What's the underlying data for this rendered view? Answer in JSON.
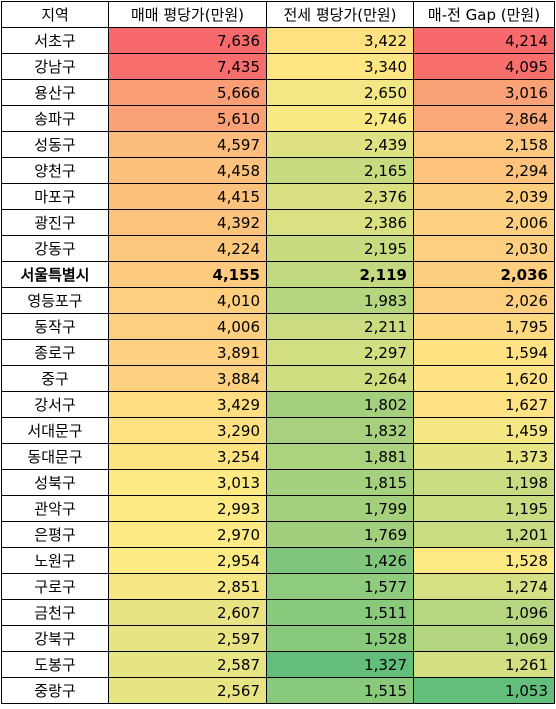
{
  "table": {
    "headers": [
      "지역",
      "매매 평당가(만원)",
      "전세 평당가(만원)",
      "매-전 Gap (만원)"
    ],
    "bold_row_index": 9,
    "rows": [
      {
        "region": "서초구",
        "sale": "7,636",
        "jeonse": "3,422",
        "gap": "4,214",
        "sale_color": "#f8696b",
        "jeonse_color": "#fee282",
        "gap_color": "#f8696b"
      },
      {
        "region": "강남구",
        "sale": "7,435",
        "jeonse": "3,340",
        "gap": "4,095",
        "sale_color": "#f86e6c",
        "jeonse_color": "#fee683",
        "gap_color": "#f86f6c"
      },
      {
        "region": "용산구",
        "sale": "5,666",
        "jeonse": "2,650",
        "gap": "3,016",
        "sale_color": "#fa9f75",
        "jeonse_color": "#f1e784",
        "gap_color": "#fba176"
      },
      {
        "region": "송파구",
        "sale": "5,610",
        "jeonse": "2,746",
        "gap": "2,864",
        "sale_color": "#faa176",
        "jeonse_color": "#f8e984",
        "gap_color": "#fba978"
      },
      {
        "region": "성동구",
        "sale": "4,597",
        "jeonse": "2,439",
        "gap": "2,158",
        "sale_color": "#fcbc7b",
        "jeonse_color": "#dfe283",
        "gap_color": "#fdc97e"
      },
      {
        "region": "양천구",
        "sale": "4,458",
        "jeonse": "2,165",
        "gap": "2,294",
        "sale_color": "#fcc17c",
        "jeonse_color": "#c6da80",
        "gap_color": "#fdc37d"
      },
      {
        "region": "마포구",
        "sale": "4,415",
        "jeonse": "2,376",
        "gap": "2,039",
        "sale_color": "#fcc27c",
        "jeonse_color": "#d9e082",
        "gap_color": "#fece7f"
      },
      {
        "region": "광진구",
        "sale": "4,392",
        "jeonse": "2,386",
        "gap": "2,006",
        "sale_color": "#fcc37d",
        "jeonse_color": "#dae182",
        "gap_color": "#fed080"
      },
      {
        "region": "강동구",
        "sale": "4,224",
        "jeonse": "2,195",
        "gap": "2,030",
        "sale_color": "#fcc87d",
        "jeonse_color": "#c9db81",
        "gap_color": "#fecf7f"
      },
      {
        "region": "서울특별시",
        "sale": "4,155",
        "jeonse": "2,119",
        "gap": "2,036",
        "sale_color": "#fdca7e",
        "jeonse_color": "#c2d980",
        "gap_color": "#fece7f"
      },
      {
        "region": "영등포구",
        "sale": "4,010",
        "jeonse": "1,983",
        "gap": "2,026",
        "sale_color": "#fdcf7f",
        "jeonse_color": "#b5d57f",
        "gap_color": "#fecf7f"
      },
      {
        "region": "동작구",
        "sale": "4,006",
        "jeonse": "2,211",
        "gap": "1,795",
        "sale_color": "#fdcf7f",
        "jeonse_color": "#cadb81",
        "gap_color": "#fed981"
      },
      {
        "region": "종로구",
        "sale": "3,891",
        "jeonse": "2,297",
        "gap": "1,594",
        "sale_color": "#fdd17f",
        "jeonse_color": "#d2de82",
        "gap_color": "#ffe383"
      },
      {
        "region": "중구",
        "sale": "3,884",
        "jeonse": "2,264",
        "gap": "1,620",
        "sale_color": "#fdd17f",
        "jeonse_color": "#cfdd81",
        "gap_color": "#fee283"
      },
      {
        "region": "강서구",
        "sale": "3,429",
        "jeonse": "1,802",
        "gap": "1,627",
        "sale_color": "#fede81",
        "jeonse_color": "#a4d07e",
        "gap_color": "#fee283"
      },
      {
        "region": "서대문구",
        "sale": "3,290",
        "jeonse": "1,832",
        "gap": "1,459",
        "sale_color": "#fee282",
        "jeonse_color": "#a7d17e",
        "gap_color": "#f5e884"
      },
      {
        "region": "동대문구",
        "sale": "3,254",
        "jeonse": "1,881",
        "gap": "1,373",
        "sale_color": "#fee382",
        "jeonse_color": "#abd27e",
        "gap_color": "#e7e483"
      },
      {
        "region": "성북구",
        "sale": "3,013",
        "jeonse": "1,815",
        "gap": "1,198",
        "sale_color": "#fee983",
        "jeonse_color": "#a5d07e",
        "gap_color": "#c9dc81"
      },
      {
        "region": "관악구",
        "sale": "2,993",
        "jeonse": "1,799",
        "gap": "1,195",
        "sale_color": "#feea83",
        "jeonse_color": "#a4d07e",
        "gap_color": "#c9dc81"
      },
      {
        "region": "은평구",
        "sale": "2,970",
        "jeonse": "1,769",
        "gap": "1,201",
        "sale_color": "#fdea84",
        "jeonse_color": "#a1cf7d",
        "gap_color": "#cadc81"
      },
      {
        "region": "노원구",
        "sale": "2,954",
        "jeonse": "1,426",
        "gap": "1,528",
        "sale_color": "#fcea84",
        "jeonse_color": "#7fc57b",
        "gap_color": "#fbe983"
      },
      {
        "region": "구로구",
        "sale": "2,851",
        "jeonse": "1,577",
        "gap": "1,274",
        "sale_color": "#f5e884",
        "jeonse_color": "#8ecb7c",
        "gap_color": "#d6df82"
      },
      {
        "region": "금천구",
        "sale": "2,607",
        "jeonse": "1,511",
        "gap": "1,096",
        "sale_color": "#e8e483",
        "jeonse_color": "#88c97c",
        "gap_color": "#b8d680"
      },
      {
        "region": "강북구",
        "sale": "2,597",
        "jeonse": "1,528",
        "gap": "1,069",
        "sale_color": "#e8e483",
        "jeonse_color": "#89c97c",
        "gap_color": "#b3d57f"
      },
      {
        "region": "도봉구",
        "sale": "2,587",
        "jeonse": "1,327",
        "gap": "1,261",
        "sale_color": "#e7e483",
        "jeonse_color": "#63be7b",
        "gap_color": "#d4df82"
      },
      {
        "region": "중랑구",
        "sale": "2,567",
        "jeonse": "1,515",
        "gap": "1,053",
        "sale_color": "#e6e483",
        "jeonse_color": "#88c97c",
        "gap_color": "#63be7b"
      }
    ]
  }
}
